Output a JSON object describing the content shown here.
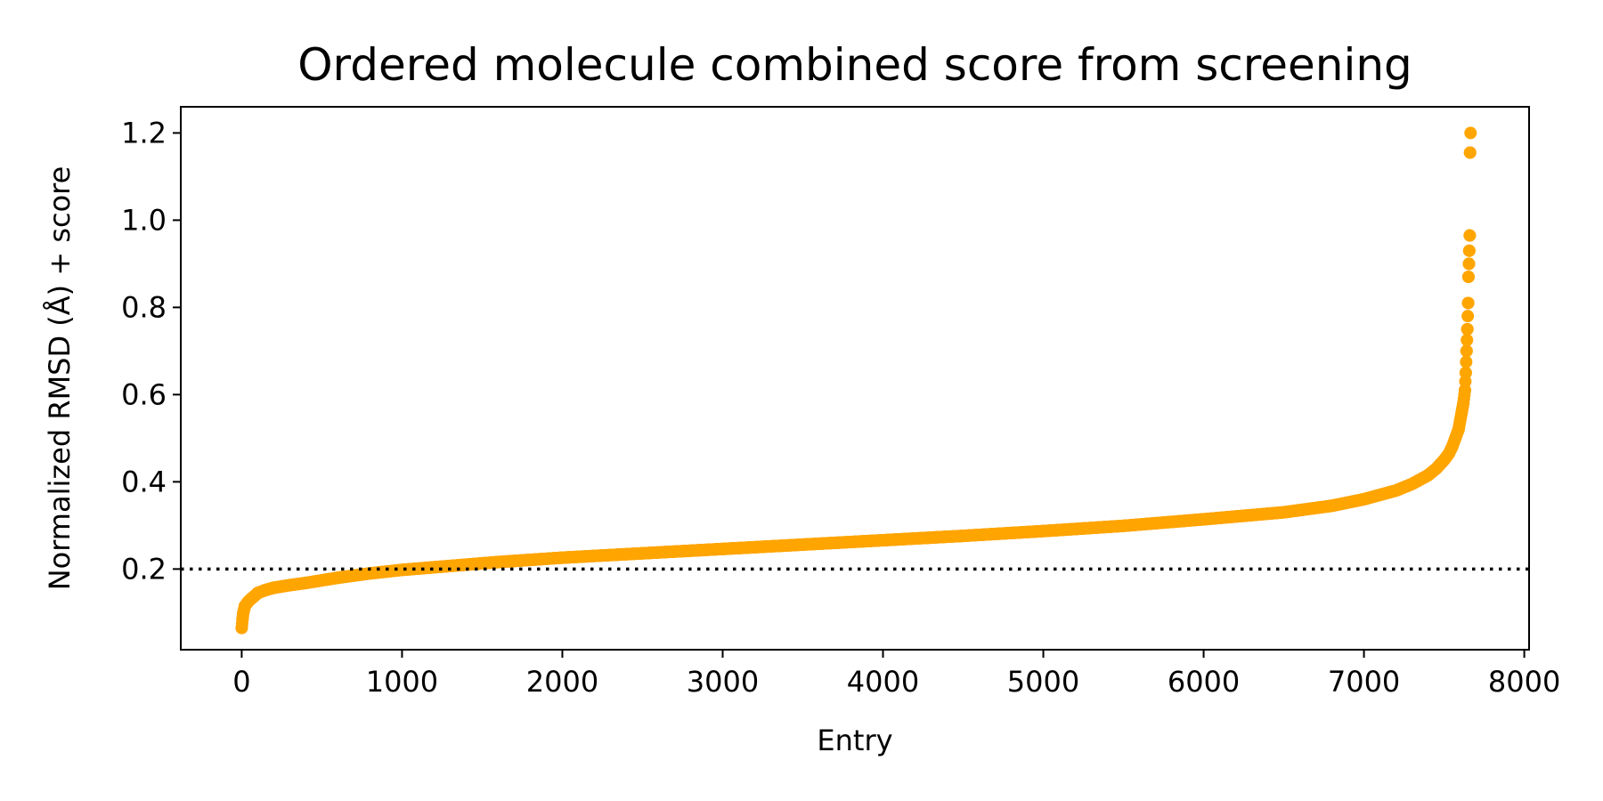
{
  "chart_data": {
    "type": "scatter",
    "title": "Ordered molecule combined score from screening",
    "xlabel": "Entry",
    "ylabel": "Normalized RMSD (Å) + score",
    "xlim": [
      -380,
      8030
    ],
    "ylim": [
      0.015,
      1.26
    ],
    "xticks": [
      0,
      1000,
      2000,
      3000,
      4000,
      5000,
      6000,
      7000,
      8000
    ],
    "xtick_labels": [
      "0",
      "1000",
      "2000",
      "3000",
      "4000",
      "5000",
      "6000",
      "7000",
      "8000"
    ],
    "yticks": [
      0.2,
      0.4,
      0.6,
      0.8,
      1.0,
      1.2
    ],
    "ytick_labels": [
      "0.2",
      "0.4",
      "0.6",
      "0.8",
      "1.0",
      "1.2"
    ],
    "grid": false,
    "legend": null,
    "point_color": "#FFA500",
    "threshold_line": {
      "y": 0.2,
      "style": "dotted",
      "color": "#000000"
    },
    "series": [
      {
        "x": [
          0,
          5,
          10,
          20,
          40,
          60,
          80,
          100,
          150,
          200,
          300,
          400,
          500,
          600,
          700,
          800,
          900,
          1000,
          1200,
          1400,
          1600,
          1800,
          2000,
          2500,
          3000,
          3500,
          4000,
          4500,
          5000,
          5500,
          6000,
          6500,
          6800,
          7000,
          7200,
          7300,
          7400,
          7450,
          7500,
          7530,
          7550,
          7570,
          7590,
          7600,
          7610,
          7620,
          7630,
          7635,
          7640,
          7645,
          7650,
          7652,
          7655,
          7657,
          7660,
          7662,
          7665
        ],
        "y": [
          0.065,
          0.085,
          0.1,
          0.115,
          0.125,
          0.132,
          0.138,
          0.145,
          0.152,
          0.157,
          0.163,
          0.168,
          0.174,
          0.18,
          0.185,
          0.19,
          0.194,
          0.198,
          0.204,
          0.21,
          0.216,
          0.221,
          0.226,
          0.236,
          0.246,
          0.256,
          0.266,
          0.276,
          0.287,
          0.299,
          0.314,
          0.33,
          0.345,
          0.36,
          0.38,
          0.395,
          0.415,
          0.43,
          0.45,
          0.465,
          0.48,
          0.5,
          0.52,
          0.54,
          0.56,
          0.58,
          0.61,
          0.65,
          0.7,
          0.75,
          0.81,
          0.87,
          0.9,
          0.93,
          0.965,
          1.155,
          1.2
        ]
      }
    ]
  }
}
